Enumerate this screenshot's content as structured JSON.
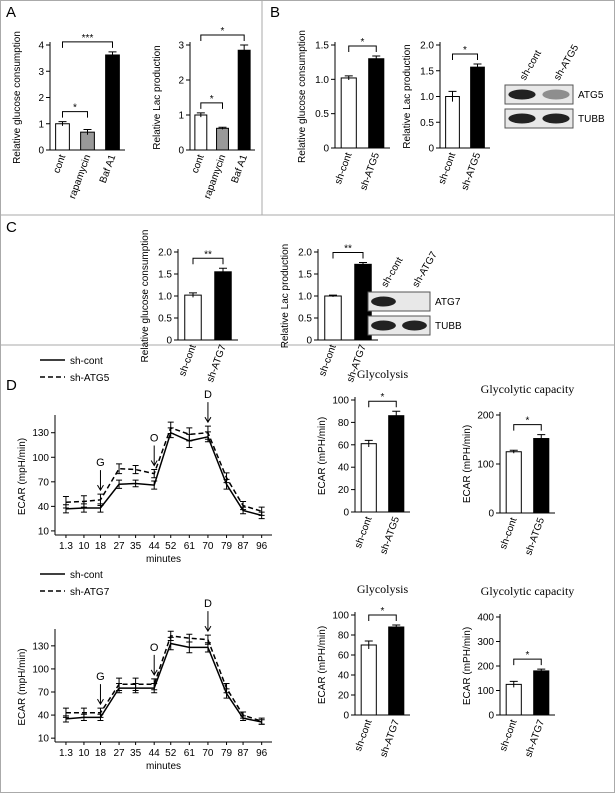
{
  "panels": [
    "A",
    "B",
    "C",
    "D"
  ],
  "blots": [
    {
      "lanes": [
        "sh-cont",
        "sh-ATG5"
      ],
      "bands": [
        "ATG5",
        "TUBB"
      ]
    },
    {
      "lanes": [
        "sh-cont",
        "sh-ATG7"
      ],
      "bands": [
        "ATG7",
        "TUBB"
      ]
    }
  ],
  "chart_data": [
    {
      "type": "bar",
      "ylabel": "Relative glucose consumption",
      "categories": [
        "cont",
        "rapamycin",
        "Baf A1"
      ],
      "values": [
        1.0,
        0.68,
        3.62
      ],
      "errors": [
        0.08,
        0.1,
        0.12
      ],
      "colors": [
        "#ffffff",
        "#999999",
        "#000000"
      ],
      "ylim": [
        0,
        4
      ],
      "yticks": [
        0,
        1,
        2,
        3,
        4
      ],
      "significance": [
        {
          "between": [
            "cont",
            "rapamycin"
          ],
          "label": "*"
        },
        {
          "between": [
            "cont",
            "Baf A1"
          ],
          "label": "***"
        }
      ]
    },
    {
      "type": "bar",
      "ylabel": "Relative Lac production",
      "categories": [
        "cont",
        "rapamycin",
        "Baf A1"
      ],
      "values": [
        1.0,
        0.62,
        2.85
      ],
      "errors": [
        0.06,
        0.03,
        0.15
      ],
      "colors": [
        "#ffffff",
        "#999999",
        "#000000"
      ],
      "ylim": [
        0,
        3
      ],
      "yticks": [
        0,
        1,
        2,
        3
      ],
      "significance": [
        {
          "between": [
            "cont",
            "rapamycin"
          ],
          "label": "*"
        },
        {
          "between": [
            "cont",
            "Baf A1"
          ],
          "label": "*"
        }
      ]
    },
    {
      "type": "bar",
      "ylabel": "Relative glucose consumption",
      "categories": [
        "sh-cont",
        "sh-ATG5"
      ],
      "values": [
        1.02,
        1.3
      ],
      "errors": [
        0.03,
        0.04
      ],
      "colors": [
        "#ffffff",
        "#000000"
      ],
      "ylim": [
        0,
        1.5
      ],
      "yticks": [
        0,
        0.5,
        {
          "value": 1,
          "label": "1.0"
        },
        1.5
      ],
      "significance": [
        {
          "between": [
            "sh-cont",
            "sh-ATG5"
          ],
          "label": "*"
        }
      ]
    },
    {
      "type": "bar",
      "ylabel": "Relative Lac production",
      "categories": [
        "sh-cont",
        "sh-ATG5"
      ],
      "values": [
        1.0,
        1.57
      ],
      "errors": [
        0.1,
        0.06
      ],
      "colors": [
        "#ffffff",
        "#000000"
      ],
      "ylim": [
        0,
        2
      ],
      "yticks": [
        0,
        0.5,
        {
          "value": 1,
          "label": "1.0"
        },
        1.5,
        {
          "value": 2,
          "label": "2.0"
        }
      ],
      "significance": [
        {
          "between": [
            "sh-cont",
            "sh-ATG5"
          ],
          "label": "*"
        }
      ]
    },
    {
      "type": "bar",
      "ylabel": "Relative glucose consumption",
      "categories": [
        "sh-cont",
        "sh-ATG7"
      ],
      "values": [
        1.02,
        1.55
      ],
      "errors": [
        0.05,
        0.08
      ],
      "colors": [
        "#ffffff",
        "#000000"
      ],
      "ylim": [
        0,
        2
      ],
      "yticks": [
        0,
        0.5,
        {
          "value": 1,
          "label": "1.0"
        },
        1.5,
        {
          "value": 2,
          "label": "2.0"
        }
      ],
      "significance": [
        {
          "between": [
            "sh-cont",
            "sh-ATG7"
          ],
          "label": "**"
        }
      ]
    },
    {
      "type": "bar",
      "ylabel": "Relative Lac production",
      "categories": [
        "sh-cont",
        "sh-ATG7"
      ],
      "values": [
        1.0,
        1.72
      ],
      "errors": [
        0.02,
        0.04
      ],
      "colors": [
        "#ffffff",
        "#000000"
      ],
      "ylim": [
        0,
        2
      ],
      "yticks": [
        0,
        0.5,
        {
          "value": 1,
          "label": "1.0"
        },
        1.5,
        {
          "value": 2,
          "label": "2.0"
        }
      ],
      "significance": [
        {
          "between": [
            "sh-cont",
            "sh-ATG7"
          ],
          "label": "**"
        }
      ]
    },
    {
      "type": "line",
      "ylabel": "ECAR (mpH/min)",
      "xlabel": "minutes",
      "x": [
        1.3,
        10,
        18,
        27,
        35,
        44,
        52,
        61,
        70,
        79,
        87,
        96
      ],
      "xlim": [
        -4,
        101
      ],
      "xticks": [
        1.3,
        10,
        18,
        27,
        35,
        44,
        52,
        61,
        70,
        79,
        87,
        96
      ],
      "ylim": [
        5,
        148
      ],
      "yticks": [
        10,
        40,
        70,
        100,
        130
      ],
      "series": [
        {
          "name": "sh-cont",
          "color": "#000000",
          "linestyle": "solid",
          "values": [
            37,
            38,
            38,
            67,
            68,
            66,
            130,
            120,
            125,
            67,
            35,
            29
          ],
          "errors": [
            5,
            5,
            5,
            5,
            4,
            5,
            6,
            8,
            6,
            6,
            4,
            4
          ]
        },
        {
          "name": "sh-ATG5",
          "color": "#000000",
          "linestyle": "dashed",
          "values": [
            45,
            46,
            48,
            86,
            85,
            80,
            136,
            128,
            130,
            75,
            41,
            34
          ],
          "errors": [
            7,
            7,
            7,
            6,
            5,
            5,
            7,
            8,
            8,
            6,
            5,
            5
          ]
        }
      ],
      "annotations": [
        {
          "label": "G",
          "x": 18
        },
        {
          "label": "O",
          "x": 44
        },
        {
          "label": "D",
          "x": 70
        }
      ]
    },
    {
      "type": "bar",
      "title": "Glycolysis",
      "ylabel": "ECAR (mPH/min)",
      "categories": [
        "sh-cont",
        "sh-ATG5"
      ],
      "values": [
        61,
        86
      ],
      "errors": [
        3,
        4
      ],
      "colors": [
        "#ffffff",
        "#000000"
      ],
      "ylim": [
        0,
        100
      ],
      "yticks": [
        0,
        20,
        40,
        60,
        80,
        100
      ],
      "significance": [
        {
          "between": [
            "sh-cont",
            "sh-ATG5"
          ],
          "label": "*"
        }
      ]
    },
    {
      "type": "bar",
      "title": "Glycolytic capacity",
      "ylabel": "ECAR (mPH/min)",
      "categories": [
        "sh-cont",
        "sh-ATG5"
      ],
      "values": [
        125,
        152
      ],
      "errors": [
        3,
        8
      ],
      "colors": [
        "#ffffff",
        "#000000"
      ],
      "ylim": [
        0,
        200
      ],
      "yticks": [
        0,
        100,
        200
      ],
      "significance": [
        {
          "between": [
            "sh-cont",
            "sh-ATG5"
          ],
          "label": "*"
        }
      ]
    },
    {
      "type": "line",
      "ylabel": "ECAR (mpH/min)",
      "xlabel": "minutes",
      "x": [
        1.3,
        10,
        18,
        27,
        35,
        44,
        52,
        61,
        70,
        79,
        87,
        96
      ],
      "xlim": [
        -4,
        101
      ],
      "xticks": [
        1.3,
        10,
        18,
        27,
        35,
        44,
        52,
        61,
        70,
        79,
        87,
        96
      ],
      "ylim": [
        5,
        148
      ],
      "yticks": [
        10,
        40,
        70,
        100,
        130
      ],
      "series": [
        {
          "name": "sh-cont",
          "color": "#000000",
          "linestyle": "solid",
          "values": [
            35,
            37,
            37,
            75,
            75,
            75,
            133,
            128,
            128,
            68,
            36,
            31
          ],
          "errors": [
            4,
            4,
            4,
            6,
            6,
            6,
            8,
            7,
            6,
            6,
            3,
            3
          ]
        },
        {
          "name": "sh-ATG7",
          "color": "#000000",
          "linestyle": "dashed",
          "values": [
            43,
            43,
            43,
            80,
            80,
            80,
            143,
            140,
            138,
            75,
            40,
            32
          ],
          "errors": [
            6,
            6,
            6,
            8,
            8,
            7,
            6,
            5,
            6,
            6,
            4,
            4
          ]
        }
      ],
      "annotations": [
        {
          "label": "G",
          "x": 18
        },
        {
          "label": "O",
          "x": 44
        },
        {
          "label": "D",
          "x": 70
        }
      ]
    },
    {
      "type": "bar",
      "title": "Glycolysis",
      "ylabel": "ECAR (mPH/min)",
      "categories": [
        "sh-cont",
        "sh-ATG7"
      ],
      "values": [
        70,
        88
      ],
      "errors": [
        4,
        2
      ],
      "colors": [
        "#ffffff",
        "#000000"
      ],
      "ylim": [
        0,
        100
      ],
      "yticks": [
        0,
        20,
        40,
        60,
        80,
        100
      ],
      "significance": [
        {
          "between": [
            "sh-cont",
            "sh-ATG7"
          ],
          "label": "*"
        }
      ]
    },
    {
      "type": "bar",
      "title": "Glycolytic capacity",
      "ylabel": "ECAR (mPH/min)",
      "categories": [
        "sh-cont",
        "sh-ATG7"
      ],
      "values": [
        125,
        180
      ],
      "errors": [
        12,
        7
      ],
      "colors": [
        "#ffffff",
        "#000000"
      ],
      "ylim": [
        0,
        400
      ],
      "yticks": [
        0,
        100,
        200,
        300,
        400
      ],
      "significance": [
        {
          "between": [
            "sh-cont",
            "sh-ATG7"
          ],
          "label": "*"
        }
      ]
    }
  ]
}
